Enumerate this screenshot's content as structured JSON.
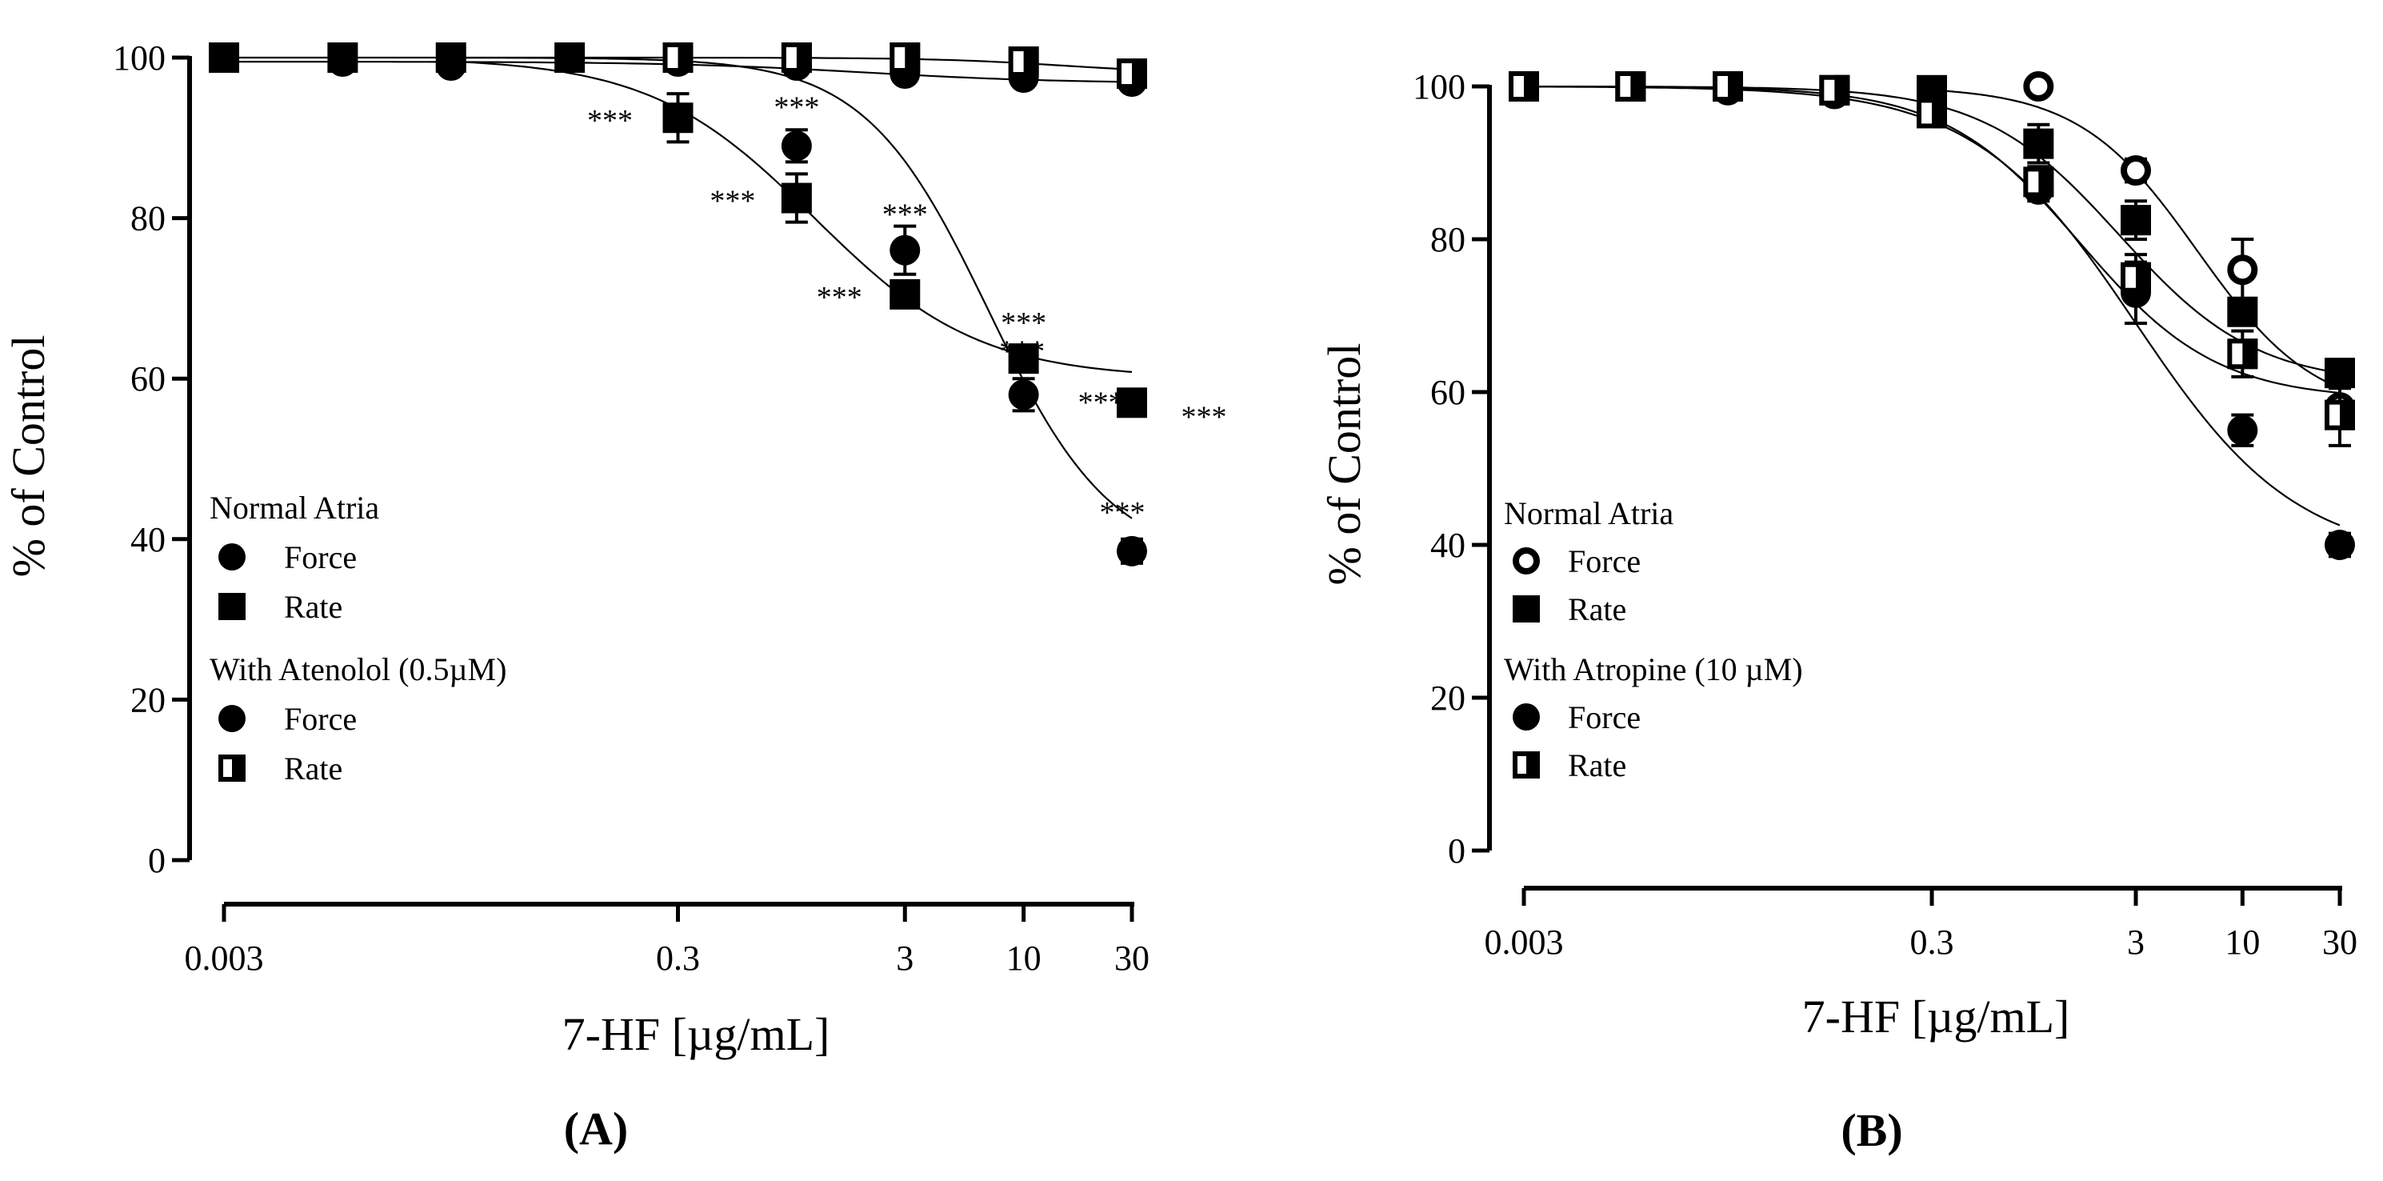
{
  "chart_data": [
    {
      "id": "A",
      "type": "scatter",
      "panel_label": "(A)",
      "xlabel": "7-HF [µg/mL]",
      "ylabel": "% of Control",
      "xscale": "log",
      "xlim": [
        0.003,
        30
      ],
      "ylim": [
        0,
        100
      ],
      "x_ticks": [
        "0.003",
        "0.3",
        "3",
        "10",
        "30"
      ],
      "y_ticks": [
        "0",
        "20",
        "40",
        "60",
        "80",
        "100"
      ],
      "legend": {
        "placement": "middle-left",
        "groups": [
          {
            "title": "Normal Atria",
            "entries": [
              {
                "label": "Force",
                "marker": "circle-filled"
              },
              {
                "label": "Rate",
                "marker": "square-filled"
              }
            ]
          },
          {
            "title": "With Atenolol (0.5µM)",
            "entries": [
              {
                "label": "Force",
                "marker": "circle-filled"
              },
              {
                "label": "Rate",
                "marker": "square-half"
              }
            ]
          }
        ]
      },
      "series": [
        {
          "name": "Normal Atria Force",
          "marker": "circle-filled",
          "x": [
            0.003,
            0.01,
            0.03,
            0.3,
            1,
            3,
            10,
            30
          ],
          "y": [
            100,
            99.5,
            99,
            99.5,
            89,
            76,
            58,
            38.5
          ],
          "err": [
            0,
            0,
            0,
            0,
            2,
            3,
            2,
            1.5
          ],
          "sig": [
            "",
            "",
            "",
            "",
            "***",
            "***",
            "***",
            "***"
          ]
        },
        {
          "name": "Normal Atria Rate",
          "marker": "square-filled",
          "x": [
            0.003,
            0.01,
            0.03,
            0.1,
            0.3,
            1,
            3,
            10,
            30
          ],
          "y": [
            100,
            100,
            100,
            100,
            92.5,
            82.5,
            70.5,
            62.5,
            57
          ],
          "err": [
            0,
            0,
            0,
            0,
            3,
            3,
            1,
            1.5,
            1
          ],
          "sig": [
            "",
            "",
            "",
            "",
            "***",
            "***",
            "***",
            "***",
            "***"
          ]
        },
        {
          "name": "Atenolol Force",
          "marker": "circle-filled",
          "x": [
            1,
            3,
            10,
            30
          ],
          "y": [
            99,
            98,
            97.5,
            97
          ],
          "err": [
            0,
            0,
            0,
            0
          ],
          "sig": [
            "",
            "",
            "",
            ""
          ]
        },
        {
          "name": "Atenolol Rate",
          "marker": "square-half",
          "x": [
            0.3,
            1,
            3,
            10,
            30
          ],
          "y": [
            100,
            100,
            100,
            99.5,
            98
          ],
          "err": [
            0,
            0,
            0,
            0,
            0
          ],
          "sig": [
            "",
            "",
            "",
            "",
            ""
          ]
        }
      ],
      "fits": [
        {
          "name": "Force fit",
          "top": 100,
          "bottom": 37,
          "ec50": 7,
          "hill": 1.6,
          "x_from": 0.03,
          "x_to": 30
        },
        {
          "name": "Rate fit",
          "top": 100,
          "bottom": 60,
          "ec50": 1.2,
          "hill": 1.2,
          "x_from": 0.03,
          "x_to": 30
        },
        {
          "name": "Atenolol Force fit",
          "top": 99.5,
          "bottom": 96.8,
          "ec50": 2,
          "hill": 1,
          "x_from": 0.003,
          "x_to": 30
        },
        {
          "name": "Atenolol Rate fit",
          "top": 100,
          "bottom": 98,
          "ec50": 15,
          "hill": 1.5,
          "x_from": 0.003,
          "x_to": 30
        }
      ]
    },
    {
      "id": "B",
      "type": "scatter",
      "panel_label": "(B)",
      "xlabel": "7-HF [µg/mL]",
      "ylabel": "% of Control",
      "xscale": "log",
      "xlim": [
        0.003,
        30
      ],
      "ylim": [
        0,
        100
      ],
      "x_ticks": [
        "0.003",
        "0.3",
        "3",
        "10",
        "30"
      ],
      "y_ticks": [
        "0",
        "20",
        "40",
        "60",
        "80",
        "100"
      ],
      "legend": {
        "placement": "middle-left",
        "groups": [
          {
            "title": "Normal Atria",
            "entries": [
              {
                "label": "Force",
                "marker": "circle-open"
              },
              {
                "label": "Rate",
                "marker": "square-filled"
              }
            ]
          },
          {
            "title": "With Atropine (10 µM)",
            "entries": [
              {
                "label": "Force",
                "marker": "circle-filled"
              },
              {
                "label": "Rate",
                "marker": "square-half"
              }
            ]
          }
        ]
      },
      "series": [
        {
          "name": "Normal Atria Force",
          "marker": "circle-open",
          "x": [
            1,
            3,
            10,
            30
          ],
          "y": [
            100,
            89,
            76,
            58
          ],
          "err": [
            0,
            1.5,
            4,
            2.5
          ],
          "sig": [
            "",
            "",
            "",
            ""
          ]
        },
        {
          "name": "Normal Atria Rate",
          "marker": "square-filled",
          "x": [
            0.003,
            0.01,
            0.03,
            0.1,
            0.3,
            1,
            3,
            10,
            30
          ],
          "y": [
            100,
            100,
            100,
            99.5,
            99.5,
            92.5,
            82.5,
            70.5,
            62.5
          ],
          "err": [
            0,
            0,
            0,
            0,
            0,
            2.5,
            2.5,
            1.5,
            1
          ],
          "sig": [
            "",
            "",
            "",
            "",
            "",
            "",
            "",
            "",
            ""
          ]
        },
        {
          "name": "Atropine Force",
          "marker": "circle-filled",
          "x": [
            0.003,
            0.01,
            0.03,
            0.1,
            0.3,
            1,
            3,
            10,
            30
          ],
          "y": [
            100,
            100,
            99.5,
            99,
            97.5,
            86.5,
            73,
            55,
            40
          ],
          "err": [
            0,
            0,
            0,
            0,
            0,
            1.5,
            4,
            2,
            1.5
          ],
          "sig": [
            "",
            "",
            "",
            "",
            "",
            "",
            "",
            "",
            ""
          ]
        },
        {
          "name": "Atropine Rate",
          "marker": "square-half",
          "x": [
            0.003,
            0.01,
            0.03,
            0.1,
            0.3,
            1,
            3,
            10,
            30
          ],
          "y": [
            100,
            100,
            100,
            99.5,
            96.5,
            87.5,
            75,
            65,
            57
          ],
          "err": [
            0,
            0,
            0,
            0,
            0,
            2,
            3,
            3,
            4
          ],
          "sig": [
            "",
            "",
            "",
            "",
            "",
            "",
            "",
            "",
            ""
          ]
        }
      ],
      "fits": [
        {
          "name": "Normal Force fit",
          "top": 100,
          "bottom": 57,
          "ec50": 6,
          "hill": 1.5,
          "x_from": 0.3,
          "x_to": 30
        },
        {
          "name": "Normal Rate fit",
          "top": 100,
          "bottom": 61,
          "ec50": 2.5,
          "hill": 1.3,
          "x_from": 0.003,
          "x_to": 30
        },
        {
          "name": "Atropine Force fit",
          "top": 100,
          "bottom": 38,
          "ec50": 3,
          "hill": 1.1,
          "x_from": 0.003,
          "x_to": 30
        },
        {
          "name": "Atropine Rate fit",
          "top": 100,
          "bottom": 59,
          "ec50": 1.6,
          "hill": 1.3,
          "x_from": 0.003,
          "x_to": 30
        }
      ]
    }
  ]
}
